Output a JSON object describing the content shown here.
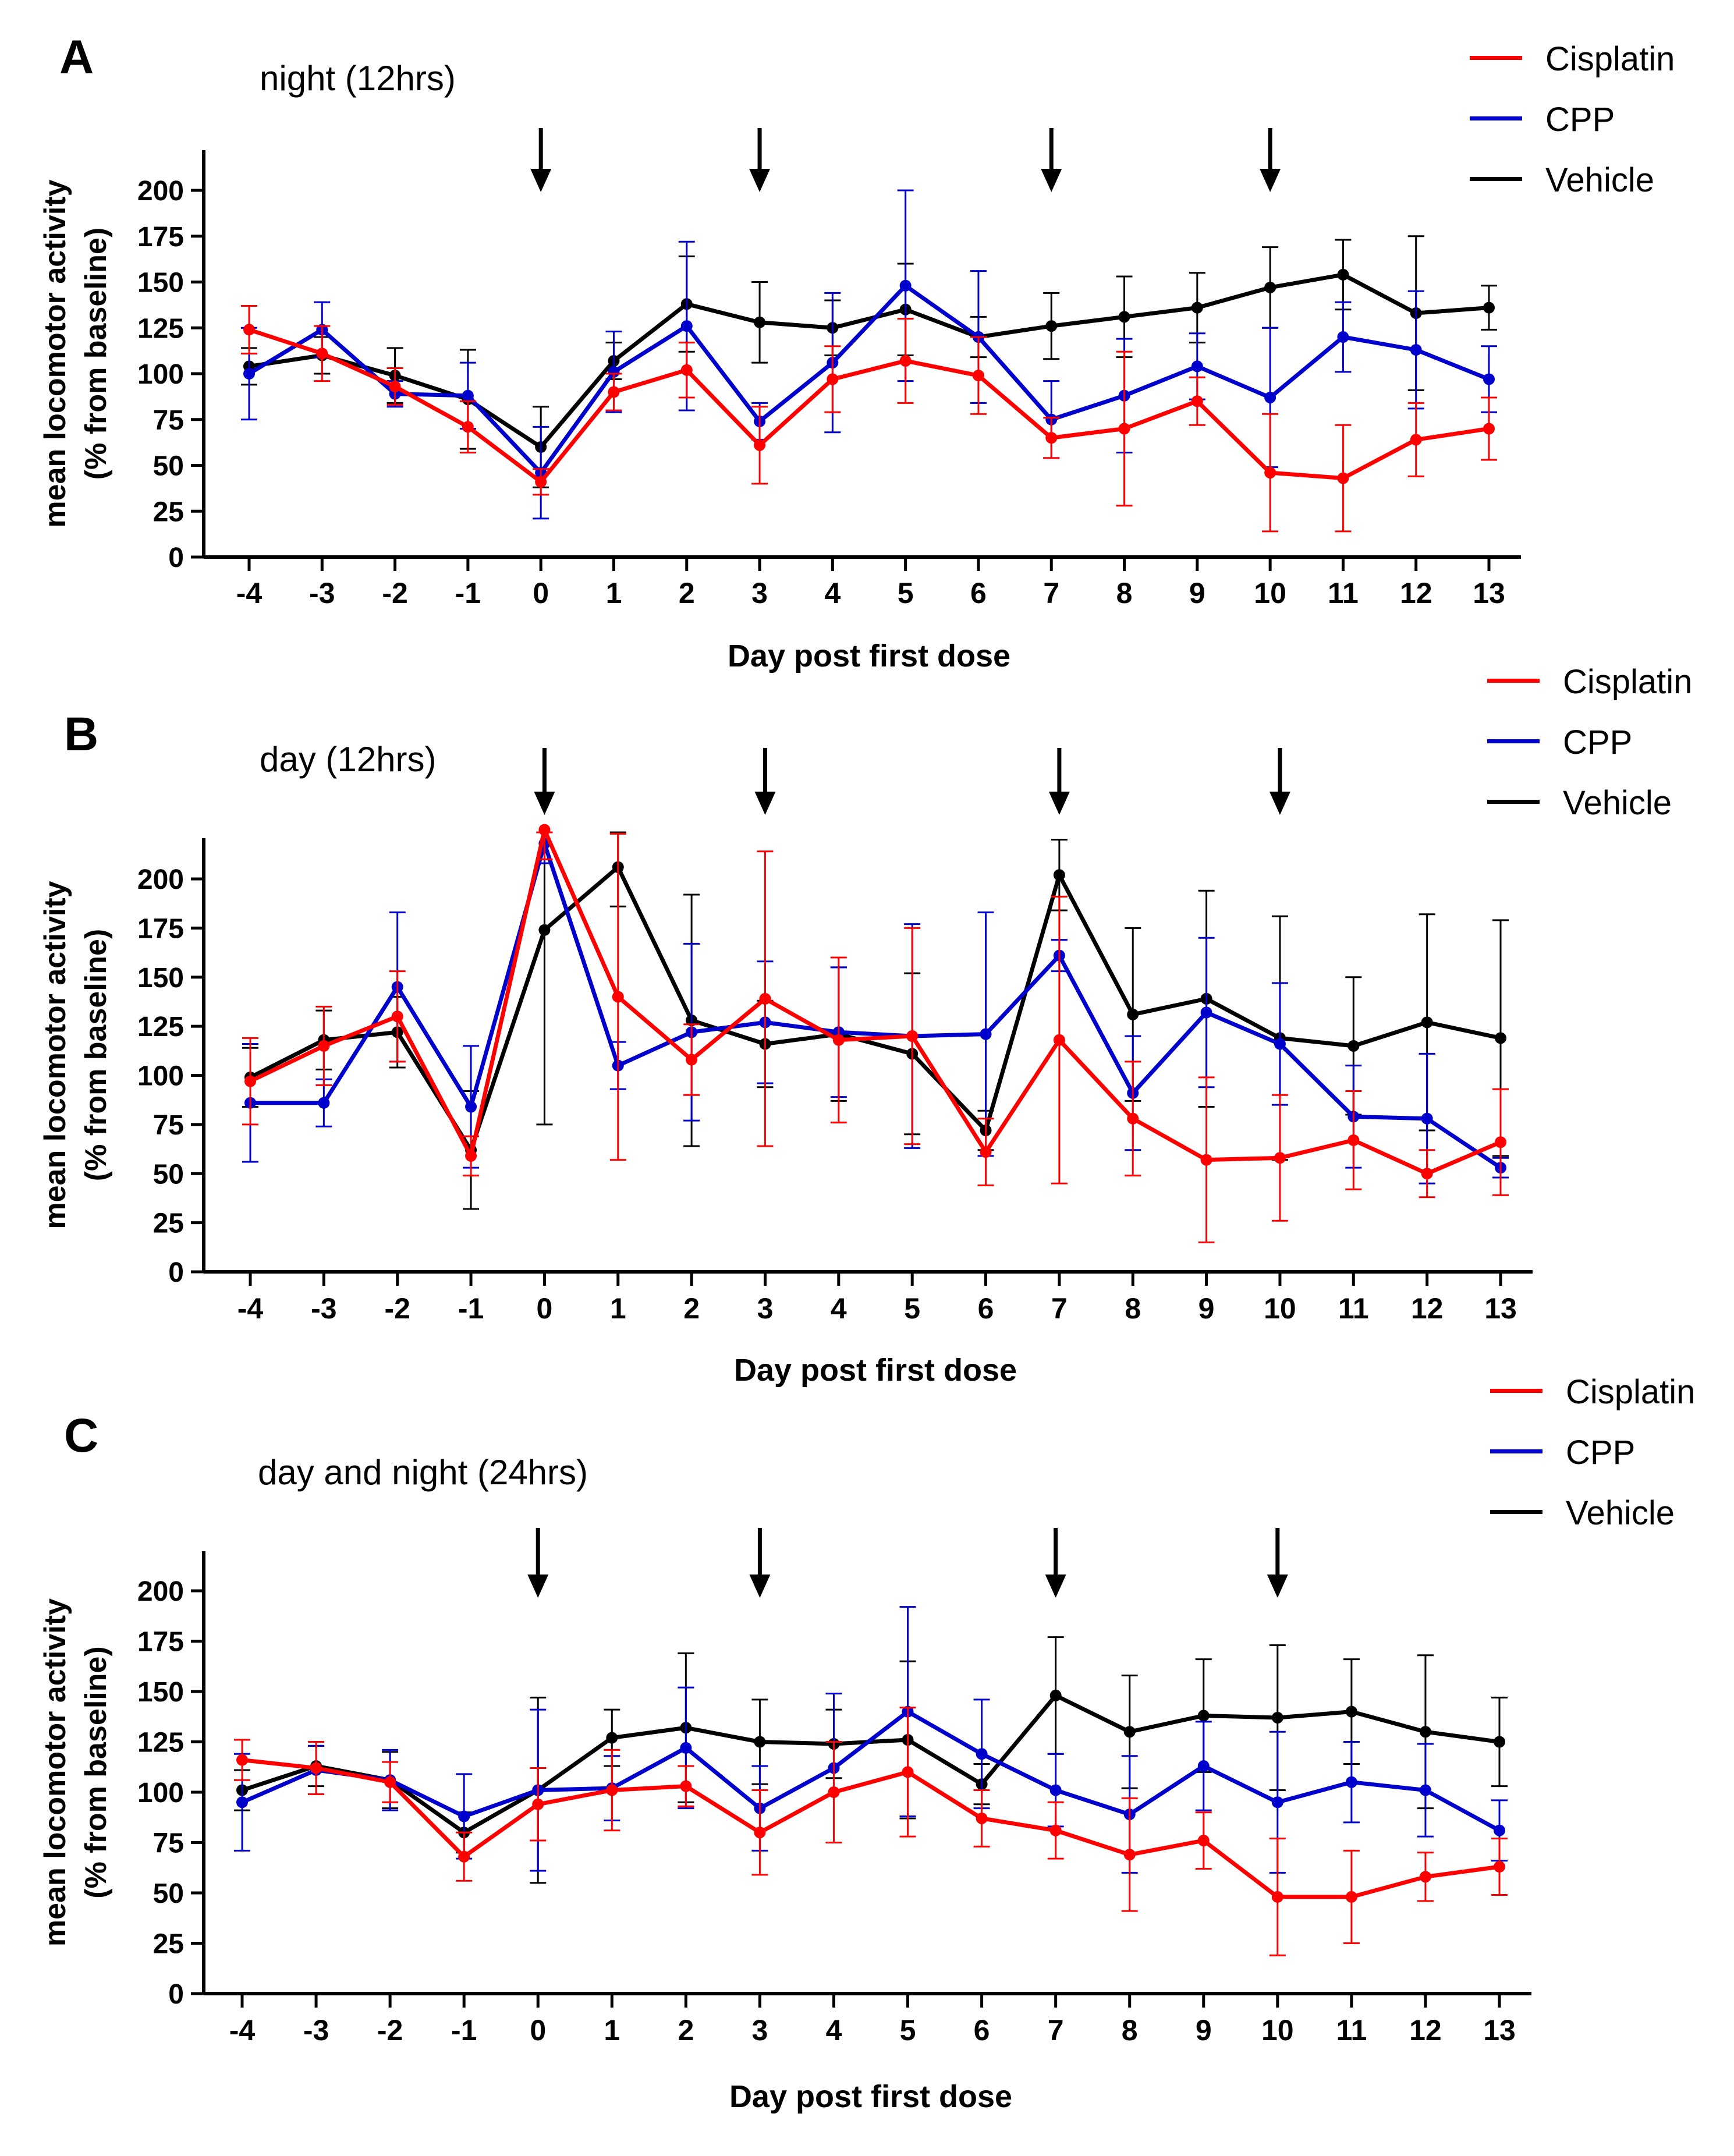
{
  "legend": [
    {
      "name": "Cisplatin",
      "color": "#ff0000"
    },
    {
      "name": "CPP",
      "color": "#0000cc"
    },
    {
      "name": "Vehicle",
      "color": "#000000"
    }
  ],
  "chart_data": [
    {
      "type": "line",
      "panel": "A",
      "title": "night (12hrs)",
      "xlabel": "Day post first dose",
      "ylabel": [
        "mean locomotor activity",
        "(% from baseline)"
      ],
      "x": [
        "-4",
        "-3",
        "-2",
        "-1",
        "0",
        "1",
        "2",
        "3",
        "4",
        "5",
        "6",
        "7",
        "8",
        "9",
        "10",
        "11",
        "12",
        "13"
      ],
      "ylim": [
        0,
        220
      ],
      "yticks": [
        0,
        25,
        50,
        75,
        100,
        125,
        150,
        175,
        200
      ],
      "dose_days": [
        "0",
        "3",
        "7",
        "10"
      ],
      "series": [
        {
          "name": "Vehicle",
          "values": [
            104,
            110,
            99,
            86,
            60,
            107,
            138,
            128,
            125,
            135,
            120,
            126,
            131,
            136,
            147,
            154,
            133,
            136
          ],
          "err": [
            10,
            10,
            15,
            27,
            22,
            10,
            26,
            22,
            15,
            25,
            11,
            18,
            22,
            19,
            22,
            19,
            42,
            12
          ]
        },
        {
          "name": "CPP",
          "values": [
            100,
            124,
            89,
            88,
            46,
            101,
            126,
            74,
            106,
            148,
            120,
            75,
            88,
            104,
            87,
            120,
            113,
            97
          ],
          "err": [
            25,
            15,
            7,
            18,
            25,
            22,
            46,
            10,
            38,
            52,
            36,
            21,
            31,
            18,
            38,
            19,
            32,
            18
          ]
        },
        {
          "name": "Cisplatin",
          "values": [
            124,
            111,
            93,
            71,
            41,
            90,
            102,
            61,
            97,
            107,
            99,
            65,
            70,
            85,
            46,
            43,
            64,
            70
          ],
          "err": [
            13,
            15,
            10,
            14,
            7,
            10,
            15,
            21,
            18,
            23,
            21,
            11,
            42,
            13,
            32,
            29,
            20,
            17
          ]
        }
      ]
    },
    {
      "type": "line",
      "panel": "B",
      "title": "day (12hrs)",
      "xlabel": "Day post first dose",
      "ylabel": [
        "mean locomotor activity",
        "(% from baseline)"
      ],
      "x": [
        "-4",
        "-3",
        "-2",
        "-1",
        "0",
        "1",
        "2",
        "3",
        "4",
        "5",
        "6",
        "7",
        "8",
        "9",
        "10",
        "11",
        "12",
        "13"
      ],
      "ylim": [
        0,
        220
      ],
      "yticks": [
        0,
        25,
        50,
        75,
        100,
        125,
        150,
        175,
        200
      ],
      "dose_days": [
        "0",
        "3",
        "7",
        "10"
      ],
      "series": [
        {
          "name": "Vehicle",
          "values": [
            99,
            118,
            122,
            62,
            174,
            206,
            128,
            116,
            121,
            111,
            72,
            202,
            131,
            139,
            119,
            115,
            127,
            119
          ],
          "err": [
            15,
            15,
            18,
            30,
            99,
            20,
            64,
            22,
            34,
            41,
            10,
            18,
            44,
            55,
            62,
            35,
            55,
            60
          ]
        },
        {
          "name": "CPP",
          "values": [
            86,
            86,
            145,
            84,
            218,
            105,
            122,
            127,
            122,
            120,
            121,
            161,
            91,
            132,
            116,
            79,
            78,
            53
          ],
          "err": [
            30,
            12,
            38,
            31,
            10,
            12,
            45,
            31,
            33,
            57,
            62,
            8,
            29,
            38,
            31,
            26,
            33,
            5
          ]
        },
        {
          "name": "Cisplatin",
          "values": [
            97,
            115,
            130,
            59,
            225,
            140,
            108,
            139,
            118,
            120,
            61,
            118,
            78,
            57,
            58,
            67,
            50,
            66
          ],
          "err": [
            22,
            20,
            23,
            10,
            15,
            83,
            18,
            75,
            42,
            55,
            17,
            73,
            29,
            42,
            32,
            25,
            12,
            27
          ]
        }
      ]
    },
    {
      "type": "line",
      "panel": "C",
      "title": "day and night (24hrs)",
      "xlabel": "Day post first dose",
      "ylabel": [
        "mean locomotor activity",
        "(% from baseline)"
      ],
      "x": [
        "-4",
        "-3",
        "-2",
        "-1",
        "0",
        "1",
        "2",
        "3",
        "4",
        "5",
        "6",
        "7",
        "8",
        "9",
        "10",
        "11",
        "12",
        "13"
      ],
      "ylim": [
        0,
        220
      ],
      "yticks": [
        0,
        25,
        50,
        75,
        100,
        125,
        150,
        175,
        200
      ],
      "dose_days": [
        "0",
        "3",
        "7",
        "10"
      ],
      "series": [
        {
          "name": "Vehicle",
          "values": [
            101,
            113,
            106,
            80,
            101,
            127,
            132,
            125,
            124,
            126,
            104,
            148,
            130,
            138,
            137,
            140,
            130,
            125
          ],
          "err": [
            10,
            10,
            14,
            10,
            46,
            14,
            37,
            21,
            17,
            39,
            10,
            29,
            28,
            28,
            36,
            26,
            38,
            22
          ]
        },
        {
          "name": "CPP",
          "values": [
            95,
            111,
            106,
            88,
            101,
            102,
            122,
            92,
            112,
            140,
            119,
            101,
            89,
            113,
            95,
            105,
            101,
            81
          ],
          "err": [
            24,
            12,
            15,
            21,
            40,
            16,
            30,
            21,
            37,
            52,
            27,
            18,
            29,
            22,
            35,
            20,
            23,
            15
          ]
        },
        {
          "name": "Cisplatin",
          "values": [
            116,
            112,
            105,
            68,
            94,
            101,
            103,
            80,
            100,
            110,
            87,
            81,
            69,
            76,
            48,
            48,
            58,
            63
          ],
          "err": [
            10,
            13,
            10,
            12,
            18,
            20,
            10,
            21,
            25,
            32,
            14,
            14,
            28,
            14,
            29,
            23,
            12,
            14
          ]
        }
      ]
    }
  ]
}
